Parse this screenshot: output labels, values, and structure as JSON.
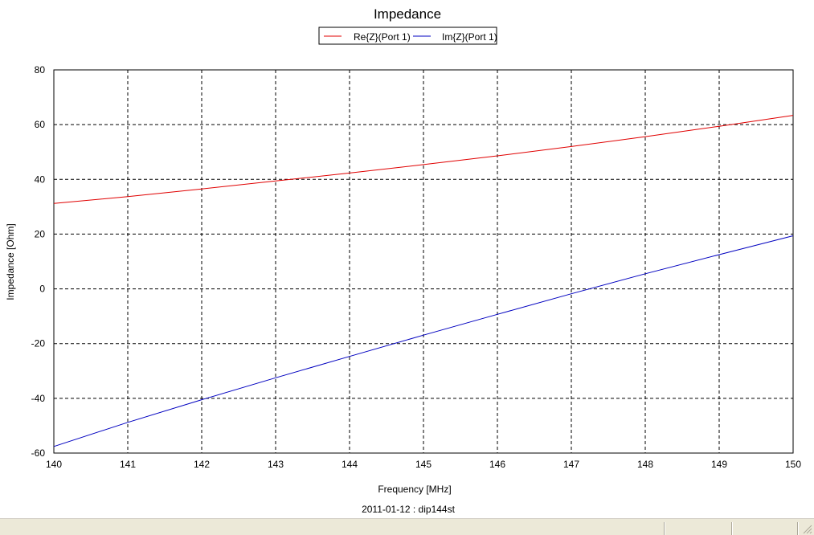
{
  "chart_data": {
    "type": "line",
    "title": "Impedance",
    "xlabel": "Frequency [MHz]",
    "ylabel": "Impedance [Ohm]",
    "footer": "2011-01-12 : dip144st",
    "xlim": [
      140,
      150
    ],
    "ylim": [
      -60,
      80
    ],
    "xticks": [
      140,
      141,
      142,
      143,
      144,
      145,
      146,
      147,
      148,
      149,
      150
    ],
    "yticks": [
      80,
      60,
      40,
      20,
      0,
      -20,
      -40,
      -60
    ],
    "grid": true,
    "legend": "top-center",
    "x": [
      140,
      141,
      142,
      143,
      144,
      145,
      146,
      147,
      148,
      149,
      150
    ],
    "series": [
      {
        "name": "Re{Z}(Port 1)",
        "color": "#e00000",
        "values": [
          31.2,
          33.7,
          36.5,
          39.4,
          42.3,
          45.4,
          48.6,
          52.0,
          55.6,
          59.4,
          63.4
        ]
      },
      {
        "name": "Im{Z}(Port 1)",
        "color": "#0000c0",
        "values": [
          -57.6,
          -48.8,
          -40.5,
          -32.5,
          -24.7,
          -16.9,
          -9.3,
          -1.8,
          5.5,
          12.5,
          19.4
        ]
      }
    ]
  }
}
